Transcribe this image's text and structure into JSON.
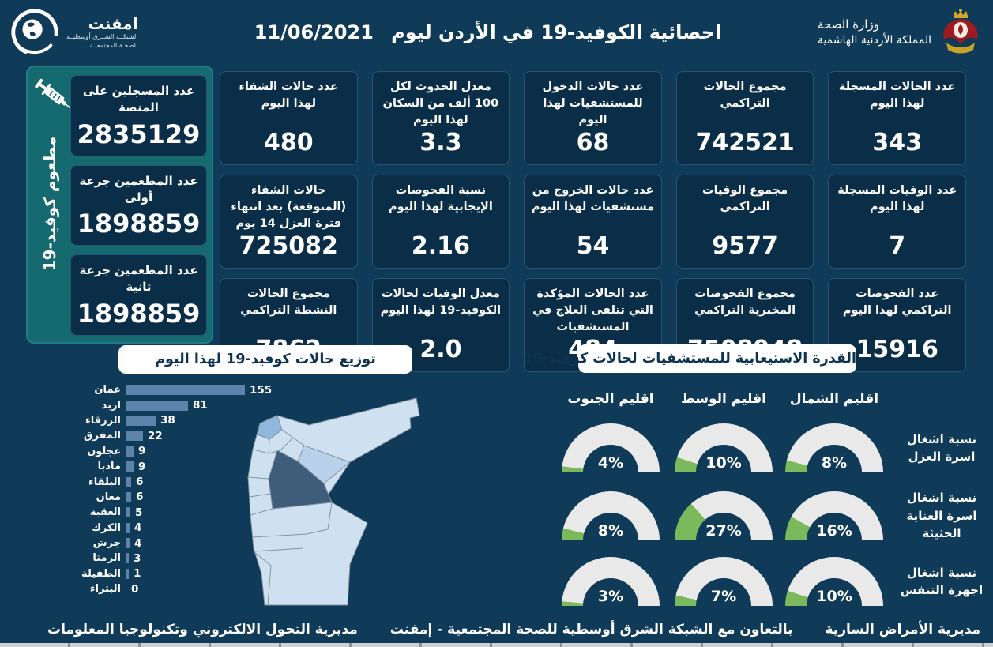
{
  "header": {
    "title": "احصائية الكوفيد-19 في الأردن ليوم",
    "date": "11/06/2021",
    "emphnet": {
      "name": "امفنت",
      "line1": "الشبكــة الشــرق أوسطيــة",
      "line2": "للصحـة المجتمعيـة"
    },
    "ministry": {
      "line1": "وزارة الصحة",
      "line2": "المملكة الأردنية الهاشمية"
    }
  },
  "vaccination_panel": {
    "side_label": "مطعوم كوفيد-19",
    "cards": [
      {
        "label": "عدد المسجلين على المنصة",
        "value": "2835129"
      },
      {
        "label": "عدد المطعمين جرعة أولى",
        "value": "1898859"
      },
      {
        "label": "عدد المطعمين جرعة ثانية",
        "value": "1898859"
      }
    ]
  },
  "stat_columns": [
    [
      {
        "label": "عدد الحالات المسجلة لهذا اليوم",
        "value": "343"
      },
      {
        "label": "عدد الوفيات المسجلة لهذا اليوم",
        "value": "7"
      },
      {
        "label": "عدد الفحوصات التراكمي لهذا اليوم",
        "value": "15916"
      }
    ],
    [
      {
        "label": "مجموع الحالات التراكمي",
        "value": "742521"
      },
      {
        "label": "مجموع الوفيات التراكمي",
        "value": "9577"
      },
      {
        "label": "مجموع الفحوصات المخبرية التراكمي",
        "value": "7508948"
      }
    ],
    [
      {
        "label": "عدد حالات الدخول للمستشفيات لهذا اليوم",
        "value": "68"
      },
      {
        "label": "عدد حالات الخروج من مستشفيات لهذا اليوم",
        "value": "54"
      },
      {
        "label": "عدد الحالات المؤكدة التي تتلقى العلاج في المستشفيات",
        "value": "484"
      }
    ],
    [
      {
        "label": "معدل الحدوث لكل 100 ألف من السكان لهذا اليوم",
        "value": "3.3"
      },
      {
        "label": "نسبة الفحوصات الإيجابية لهذا اليوم",
        "value": "2.16"
      },
      {
        "label": "معدل الوفيات لحالات الكوفيد-19 لهذا اليوم",
        "value": "2.0"
      }
    ],
    [
      {
        "label": "عدد حالات الشفاء لهذا اليوم",
        "value": "480"
      },
      {
        "label": "حالات الشفاء (المتوقعة) بعد انتهاء فترة العزل 14 يوم",
        "value": "725082"
      },
      {
        "label": "مجموع الحالات النشطة التراكمي",
        "value": "7862"
      }
    ]
  ],
  "chart_data": [
    {
      "type": "bar",
      "title": "توزيع حالات كوفيد-19 لهذا اليوم",
      "orientation": "horizontal",
      "categories": [
        "عمان",
        "اربد",
        "الزرقاء",
        "المفرق",
        "عجلون",
        "مادبا",
        "البلقاء",
        "معان",
        "العقبة",
        "الكرك",
        "جرش",
        "الرمثا",
        "الطفيلة",
        "البتراء"
      ],
      "values": [
        155,
        81,
        38,
        22,
        9,
        9,
        6,
        6,
        5,
        4,
        4,
        3,
        1,
        0
      ],
      "xlim": [
        0,
        155
      ],
      "grid": false,
      "value_labels": true
    },
    {
      "type": "gauge-grid",
      "title": "القدرة الاستيعابية للمستشفيات لحالات كوفيد-19",
      "columns": [
        "اقليم الجنوب",
        "اقليم الوسط",
        "اقليم الشمال"
      ],
      "rows": [
        {
          "label": "نسبة اشغال اسرة العزل",
          "values": [
            4,
            10,
            8
          ]
        },
        {
          "label": "نسبة اشغال اسرة العناية الحثيثة",
          "values": [
            8,
            27,
            16
          ]
        },
        {
          "label": "نسبة اشغال اجهزة التنفس",
          "values": [
            3,
            7,
            10
          ]
        }
      ],
      "unit": "%",
      "range": [
        0,
        100
      ]
    }
  ],
  "map": {
    "base_color": "#cfe1f1",
    "stroke_color": "#8494a2",
    "region_colors": {
      "amman": "#3f5d7a",
      "irbid": "#8fb8dc",
      "zarqa": "#b9d1e9"
    }
  },
  "footer": {
    "right": "مديرية الأمراض السارية",
    "center": "بالتعاون مع الشبكة الشرق أوسطية للصحة المجتمعية - إمفنت",
    "left": "مديرية التحول الالكتروني وتكنولوجيا المعلومات"
  },
  "colors": {
    "page_bg": "#0f3a58",
    "card_bg": "#0a2e48",
    "card_border": "#2a5572",
    "teal": "#156a70",
    "bar_color": "#5d83ab",
    "gauge_fill": "#7cb95c",
    "gauge_track": "#e9e9e9"
  }
}
